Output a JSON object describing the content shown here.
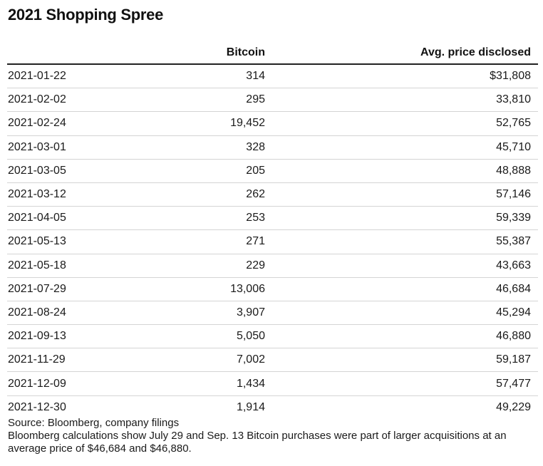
{
  "title": "2021 Shopping Spree",
  "chart_data": {
    "type": "table",
    "title": "2021 Shopping Spree",
    "columns": [
      "",
      "Bitcoin",
      "Avg. price disclosed"
    ],
    "rows": [
      {
        "date": "2021-01-22",
        "bitcoin": "314",
        "price": "$31,808"
      },
      {
        "date": "2021-02-02",
        "bitcoin": "295",
        "price": "33,810"
      },
      {
        "date": "2021-02-24",
        "bitcoin": "19,452",
        "price": "52,765"
      },
      {
        "date": "2021-03-01",
        "bitcoin": "328",
        "price": "45,710"
      },
      {
        "date": "2021-03-05",
        "bitcoin": "205",
        "price": "48,888"
      },
      {
        "date": "2021-03-12",
        "bitcoin": "262",
        "price": "57,146"
      },
      {
        "date": "2021-04-05",
        "bitcoin": "253",
        "price": "59,339"
      },
      {
        "date": "2021-05-13",
        "bitcoin": "271",
        "price": "55,387"
      },
      {
        "date": "2021-05-18",
        "bitcoin": "229",
        "price": "43,663"
      },
      {
        "date": "2021-07-29",
        "bitcoin": "13,006",
        "price": "46,684"
      },
      {
        "date": "2021-08-24",
        "bitcoin": "3,907",
        "price": "45,294"
      },
      {
        "date": "2021-09-13",
        "bitcoin": "5,050",
        "price": "46,880"
      },
      {
        "date": "2021-11-29",
        "bitcoin": "7,002",
        "price": "59,187"
      },
      {
        "date": "2021-12-09",
        "bitcoin": "1,434",
        "price": "57,477"
      },
      {
        "date": "2021-12-30",
        "bitcoin": "1,914",
        "price": "49,229"
      }
    ]
  },
  "footer": {
    "source": "Source: Bloomberg, company filings",
    "note": "Bloomberg calculations show July 29 and Sep. 13 Bitcoin purchases were part of larger acquisitions at an average price of $46,684 and $46,880."
  }
}
